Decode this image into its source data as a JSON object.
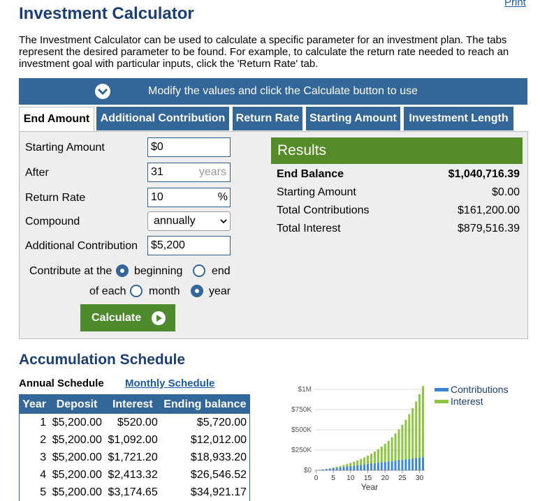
{
  "header": {
    "print": "Print",
    "title": "Investment Calculator",
    "description": "The Investment Calculator can be used to calculate a specific parameter for an investment plan. The tabs represent the desired parameter to be found. For example, to calculate the return rate needed to reach an investment goal with particular inputs, click the 'Return Rate' tab."
  },
  "banner": "Modify the values and click the Calculate button to use",
  "tabs": [
    "End Amount",
    "Additional Contribution",
    "Return Rate",
    "Starting Amount",
    "Investment Length"
  ],
  "form": {
    "fields": [
      {
        "label": "Starting Amount",
        "value": "$0"
      },
      {
        "label": "After",
        "value": "31",
        "unit": "years"
      },
      {
        "label": "Return Rate",
        "value": "10",
        "unit": "%"
      },
      {
        "label": "Compound",
        "value": "annually"
      },
      {
        "label": "Additional Contribution",
        "value": "$5,200"
      }
    ],
    "contribute_at": "Contribute at the",
    "timing_options": [
      "beginning",
      "end"
    ],
    "of_each": "of each",
    "period_options": [
      "month",
      "year"
    ],
    "button": "Calculate"
  },
  "results": {
    "title": "Results",
    "rows": [
      [
        "End Balance",
        "$1,040,716.39"
      ],
      [
        "Starting Amount",
        "$0.00"
      ],
      [
        "Total Contributions",
        "$161,200.00"
      ],
      [
        "Total Interest",
        "$879,516.39"
      ]
    ]
  },
  "schedule": {
    "title": "Accumulation Schedule",
    "annual": "Annual Schedule",
    "monthly": "Monthly Schedule",
    "table": {
      "header": [
        "Year",
        "Deposit",
        "Interest",
        "Ending balance"
      ],
      "rows": [
        [
          1,
          "$5,200.00",
          "$520.00",
          "$5,720.00"
        ],
        [
          2,
          "$5,200.00",
          "$1,092.00",
          "$12,012.00"
        ],
        [
          3,
          "$5,200.00",
          "$1,721.20",
          "$18,933.20"
        ],
        [
          4,
          "$5,200.00",
          "$2,413.32",
          "$26,546.52"
        ],
        [
          5,
          "$5,200.00",
          "$3,174.65",
          "$34,921.17"
        ]
      ]
    }
  },
  "chart_data": {
    "type": "bar",
    "stacked": true,
    "x_label": "Year",
    "x": [
      1,
      2,
      3,
      4,
      5,
      6,
      7,
      8,
      9,
      10,
      11,
      12,
      13,
      14,
      15,
      16,
      17,
      18,
      19,
      20,
      21,
      22,
      23,
      24,
      25,
      26,
      27,
      28,
      29,
      30,
      31
    ],
    "series": [
      {
        "name": "Contributions",
        "color": "#3c86d6",
        "values": [
          5200,
          10400,
          15600,
          20800,
          26000,
          31200,
          36400,
          41600,
          46800,
          52000,
          57200,
          62400,
          67600,
          72800,
          78000,
          83200,
          88400,
          93600,
          98800,
          104000,
          109200,
          114400,
          119600,
          124800,
          130000,
          135200,
          140400,
          145600,
          150800,
          156000,
          161200
        ]
      },
      {
        "name": "Interest",
        "color": "#8cc63f",
        "values": [
          520,
          1612,
          3333,
          5747,
          8921,
          12933,
          17867,
          23813,
          30875,
          39162,
          48798,
          59918,
          72670,
          87217,
          103739,
          122432,
          143516,
          167227,
          193830,
          223613,
          256894,
          294024,
          335386,
          381405,
          432545,
          489320,
          552292,
          622081,
          699369,
          784906,
          879516
        ]
      }
    ],
    "xlim": [
      -0.5,
      31.5
    ],
    "xticks": [
      0,
      5,
      10,
      15,
      20,
      25,
      30
    ],
    "ylim": [
      0,
      1000000
    ],
    "yticks": [
      {
        "value": 0,
        "label": "$0"
      },
      {
        "value": 250000,
        "label": "$250K"
      },
      {
        "value": 500000,
        "label": "$500K"
      },
      {
        "value": 750000,
        "label": "$750K"
      },
      {
        "value": 1000000,
        "label": "$1M"
      }
    ],
    "grid": true
  }
}
